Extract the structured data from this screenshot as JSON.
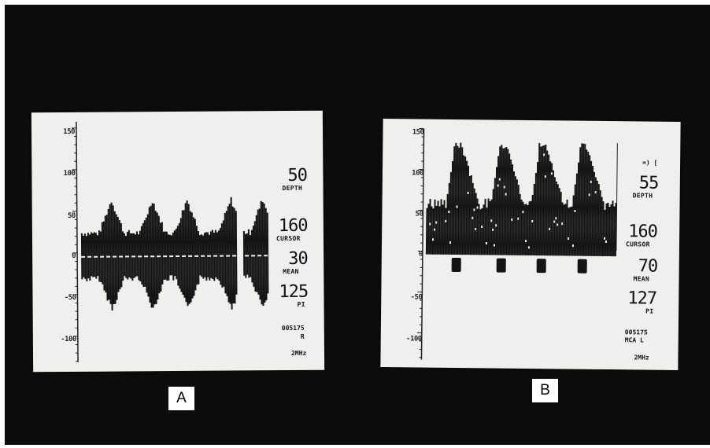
{
  "panel_a": {
    "label": "A",
    "scale": [
      "150",
      "100",
      "50",
      "0",
      "-50",
      "-100"
    ],
    "depth": {
      "value": "50",
      "label": "DEPTH"
    },
    "cursor": {
      "value": "160",
      "label": "CURSOR"
    },
    "mean": {
      "value": "30",
      "label": "MEAN"
    },
    "pi": {
      "value": "125",
      "label": "PI"
    },
    "id": "005175",
    "side": "R",
    "freq": "2MHz"
  },
  "panel_b": {
    "label": "B",
    "scale": [
      "150",
      "100",
      "50",
      "0",
      "-50",
      "-100"
    ],
    "marker": "=) [",
    "depth": {
      "value": "55",
      "label": "DEPTH"
    },
    "cursor": {
      "value": "160",
      "label": "CURSOR"
    },
    "mean": {
      "value": "70",
      "label": "MEAN"
    },
    "pi": {
      "value": "127",
      "label": "PI"
    },
    "id": "005175",
    "side": "MCA L",
    "freq": "2MHz"
  },
  "colors": {
    "background": "#0c0c0c",
    "paper": "#efefed",
    "trace": "#141414"
  }
}
